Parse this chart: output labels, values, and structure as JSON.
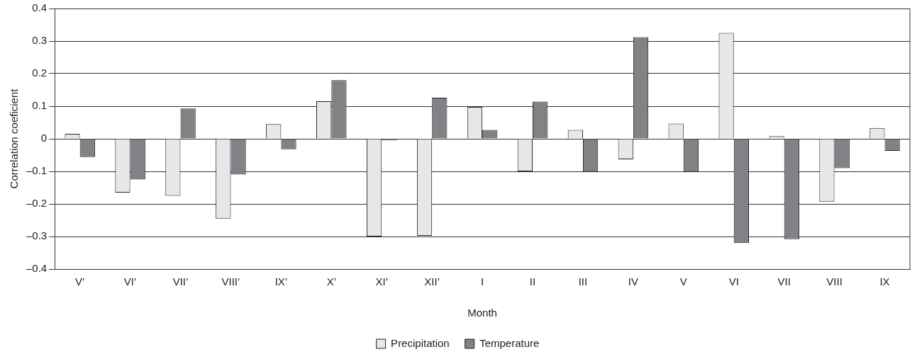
{
  "chart_data": {
    "type": "bar",
    "xlabel": "Month",
    "ylabel": "Correlation coeficient",
    "categories": [
      "V’",
      "VI’",
      "VII’",
      "VIII’",
      "IX’",
      "X’",
      "XI’",
      "XII’",
      "I",
      "II",
      "III",
      "IV",
      "V",
      "VI",
      "VII",
      "VIII",
      "IX"
    ],
    "series": [
      {
        "name": "Precipitation",
        "color": "#e6e7e8",
        "values": [
          0.015,
          -0.165,
          -0.175,
          -0.245,
          0.045,
          0.115,
          -0.3,
          -0.298,
          0.098,
          -0.1,
          0.027,
          -0.063,
          0.047,
          0.325,
          0.008,
          -0.193,
          0.033
        ]
      },
      {
        "name": "Temperature",
        "color": "#808285",
        "values": [
          -0.056,
          -0.125,
          0.093,
          -0.11,
          -0.032,
          0.18,
          -0.005,
          0.126,
          0.027,
          0.114,
          -0.102,
          0.312,
          -0.102,
          -0.32,
          -0.308,
          -0.09,
          -0.037
        ]
      }
    ],
    "ylim": [
      -0.4,
      0.4
    ],
    "yticks": [
      {
        "value": -0.4,
        "label": "–0.4"
      },
      {
        "value": -0.3,
        "label": "–0.3"
      },
      {
        "value": -0.2,
        "label": "–0.2"
      },
      {
        "value": -0.1,
        "label": "–0.1"
      },
      0,
      0.1,
      0.2,
      0.3,
      0.4
    ],
    "grid": "y",
    "legend": "bottom"
  }
}
